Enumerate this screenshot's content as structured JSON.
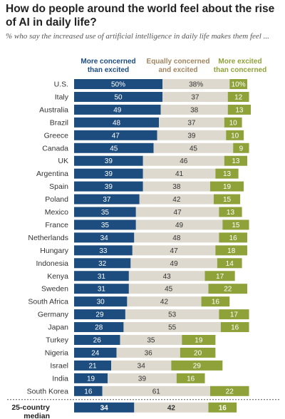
{
  "title": "How do people around the world feel about the rise of AI in daily life?",
  "subtitle": "% who say the increased use of artificial intelligence in daily life makes them feel ...",
  "chart_data": {
    "type": "bar",
    "stacked": true,
    "orientation": "horizontal",
    "categories": [
      "U.S.",
      "Italy",
      "Australia",
      "Brazil",
      "Greece",
      "Canada",
      "UK",
      "Argentina",
      "Spain",
      "Poland",
      "Mexico",
      "France",
      "Netherlands",
      "Hungary",
      "Indonesia",
      "Kenya",
      "Sweden",
      "South Africa",
      "Germany",
      "Japan",
      "Turkey",
      "Nigeria",
      "Israel",
      "India",
      "South Korea"
    ],
    "series": [
      {
        "name": "More concerned than excited",
        "color": "#1d4d7f",
        "values": [
          50,
          50,
          49,
          48,
          47,
          45,
          39,
          39,
          39,
          37,
          35,
          35,
          34,
          33,
          32,
          31,
          31,
          30,
          29,
          28,
          26,
          24,
          21,
          19,
          16
        ]
      },
      {
        "name": "Equally concerned and excited",
        "color": "#ddd9ce",
        "values": [
          38,
          37,
          38,
          37,
          39,
          45,
          46,
          41,
          38,
          42,
          47,
          49,
          48,
          47,
          49,
          43,
          45,
          42,
          53,
          55,
          35,
          36,
          34,
          39,
          61
        ]
      },
      {
        "name": "More excited than concerned",
        "color": "#8fa23a",
        "values": [
          10,
          12,
          13,
          10,
          10,
          9,
          13,
          13,
          19,
          15,
          13,
          15,
          16,
          18,
          14,
          17,
          22,
          16,
          17,
          16,
          19,
          20,
          29,
          16,
          22
        ]
      }
    ],
    "series_label_lines": [
      [
        "More concerned",
        "than excited"
      ],
      [
        "Equally concerned",
        "and excited"
      ],
      [
        "More excited",
        "than concerned"
      ]
    ],
    "first_row_suffix": "%",
    "median": {
      "label_lines": [
        "25-country",
        "median"
      ],
      "values": [
        34,
        42,
        16
      ]
    },
    "xlim": [
      0,
      100
    ]
  }
}
